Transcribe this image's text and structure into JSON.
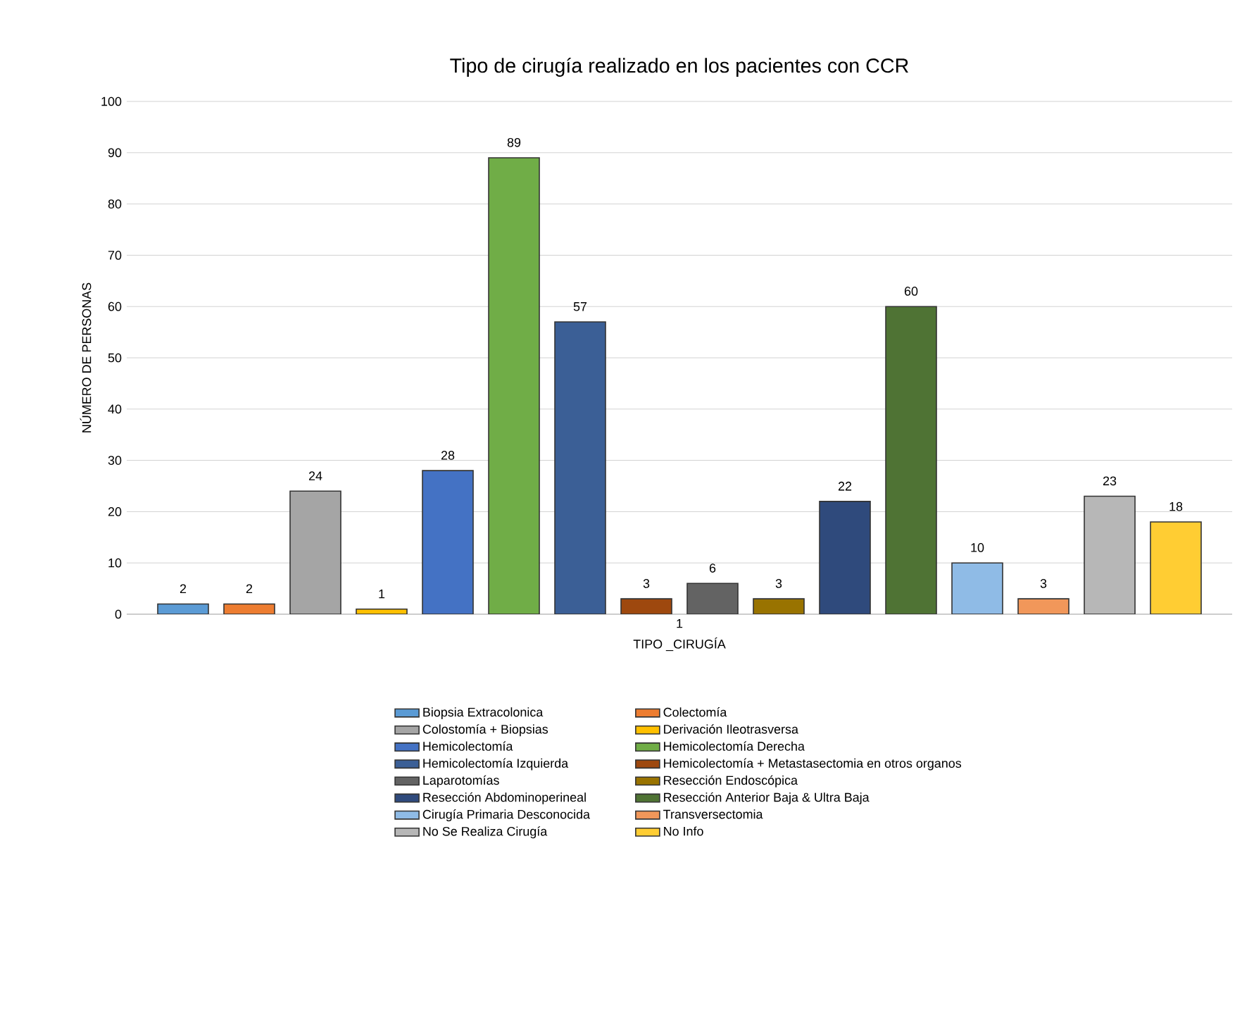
{
  "chart_data": {
    "type": "bar",
    "title": "Tipo de cirugía realizado en los pacientes con CCR",
    "xlabel": "TIPO _CIRUGÍA",
    "ylabel": "NÚMERO DE PERSONAS",
    "categories": [
      "1"
    ],
    "series": [
      {
        "name": "Biopsia Extracolonica",
        "color": "#5b9bd5",
        "values": [
          2
        ]
      },
      {
        "name": "Colectomía",
        "color": "#ed7d31",
        "values": [
          2
        ]
      },
      {
        "name": "Colostomía + Biopsias",
        "color": "#a5a5a5",
        "values": [
          24
        ]
      },
      {
        "name": "Derivación Ileotrasversa",
        "color": "#ffc000",
        "values": [
          1
        ]
      },
      {
        "name": "Hemicolectomía",
        "color": "#4472c4",
        "values": [
          28
        ]
      },
      {
        "name": "Hemicolectomía Derecha",
        "color": "#70ad47",
        "values": [
          89
        ]
      },
      {
        "name": "Hemicolectomía Izquierda",
        "color": "#3b5f96",
        "values": [
          57
        ]
      },
      {
        "name": "Hemicolectomía + Metastasectomia en otros organos",
        "color": "#9e480e",
        "values": [
          3
        ]
      },
      {
        "name": "Laparotomías",
        "color": "#636363",
        "values": [
          6
        ]
      },
      {
        "name": "Resección Endoscópica",
        "color": "#997300",
        "values": [
          3
        ]
      },
      {
        "name": "Resección Abdominoperineal",
        "color": "#2f4a7c",
        "values": [
          22
        ]
      },
      {
        "name": "Resección Anterior Baja & Ultra Baja",
        "color": "#4f7334",
        "values": [
          60
        ]
      },
      {
        "name": "Cirugía Primaria Desconocida",
        "color": "#8fbbe6",
        "values": [
          10
        ]
      },
      {
        "name": "Transversectomia",
        "color": "#f1975a",
        "values": [
          3
        ]
      },
      {
        "name": "No Se Realiza Cirugía",
        "color": "#b7b7b7",
        "values": [
          23
        ]
      },
      {
        "name": "No Info",
        "color": "#ffcd33",
        "values": [
          18
        ]
      }
    ],
    "ylim": [
      0,
      100
    ],
    "yticks": [
      0,
      10,
      20,
      30,
      40,
      50,
      60,
      70,
      80,
      90,
      100
    ],
    "grid": "y",
    "legend": "bottom",
    "data_labels": true
  }
}
